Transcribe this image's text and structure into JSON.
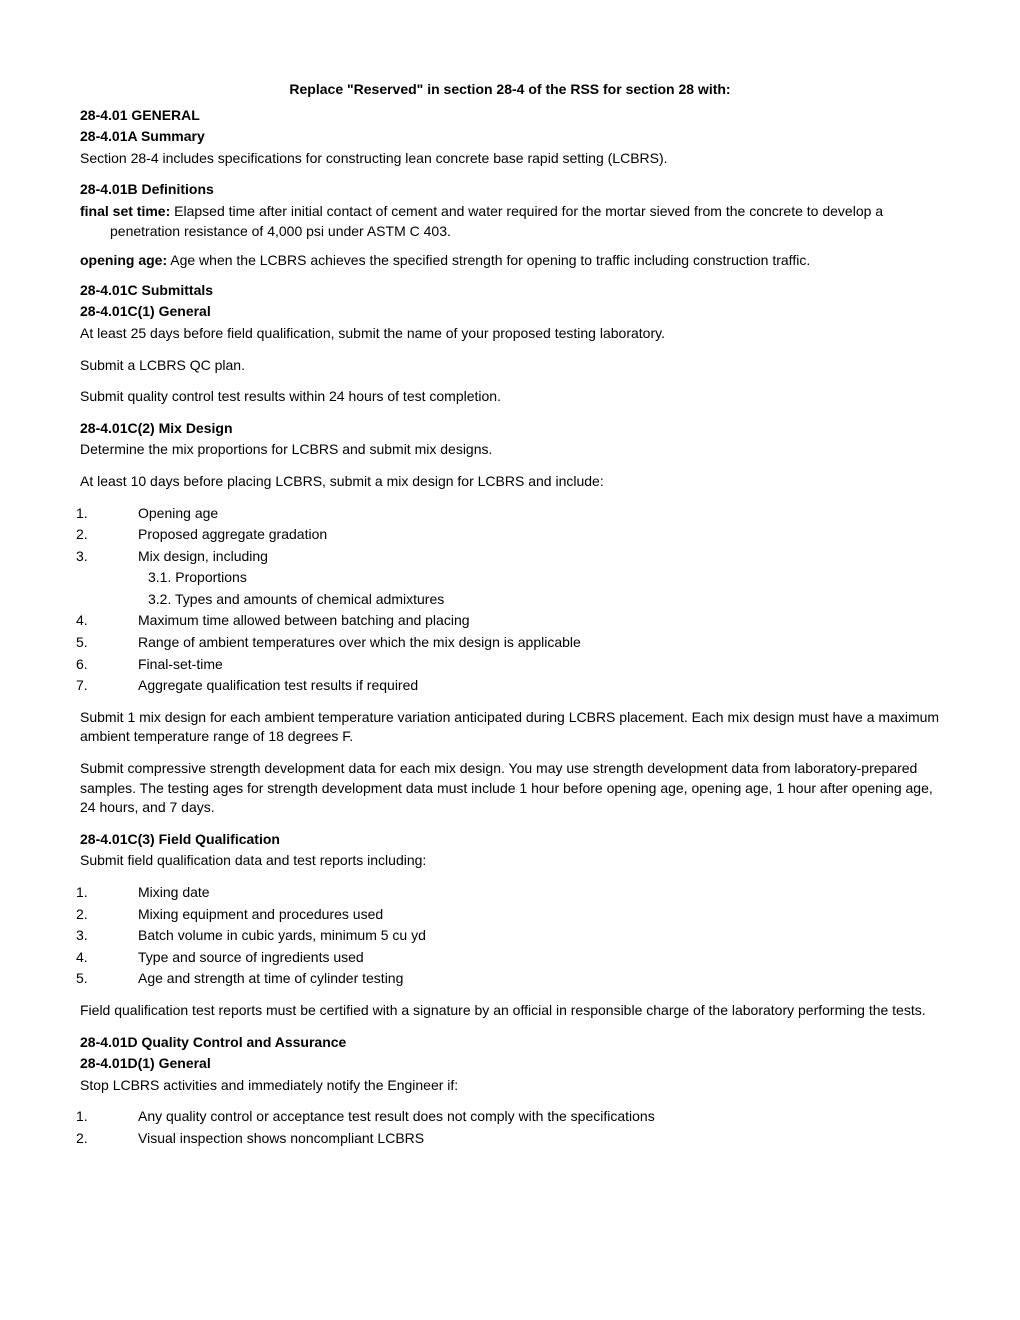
{
  "title": "Replace \"Reserved\" in section 28-4 of the RSS for section 28 with:",
  "s1": {
    "h": "28-4.01  GENERAL",
    "a": {
      "h": "28-4.01A  Summary",
      "p1": "Section 28-4 includes specifications for constructing lean concrete base rapid setting (LCBRS)."
    },
    "b": {
      "h": "28-4.01B  Definitions",
      "d1_term": "final set time:",
      "d1_body": " Elapsed time after initial contact of cement and water required for the mortar sieved from the concrete to develop a penetration resistance of 4,000 psi under ASTM C 403.",
      "d2_term": "opening age:",
      "d2_body": " Age when the LCBRS achieves the specified strength for opening to traffic including construction traffic."
    },
    "c": {
      "h": "28-4.01C  Submittals",
      "c1": {
        "h": "28-4.01C(1)  General",
        "p1": "At least 25 days before field qualification, submit the name of your proposed testing laboratory.",
        "p2": "Submit a LCBRS QC plan.",
        "p3": "Submit quality control test results within 24 hours of test completion."
      },
      "c2": {
        "h": "28-4.01C(2)  Mix Design",
        "p1": "Determine the mix proportions for LCBRS and submit mix designs.",
        "p2": "At least 10 days before placing LCBRS, submit a mix design for LCBRS and include:",
        "l1": "Opening age",
        "l2": "Proposed aggregate gradation",
        "l3": "Mix design, including",
        "l3_1": "Proportions",
        "l3_2": "Types and amounts of chemical admixtures",
        "l4": "Maximum time allowed between batching and placing",
        "l5": "Range of ambient temperatures over which the mix design is applicable",
        "l6": "Final-set-time",
        "l7": "Aggregate qualification test results if required",
        "p3": "Submit 1 mix design for each ambient temperature variation anticipated during LCBRS placement. Each mix design must have a maximum ambient temperature range of 18 degrees F.",
        "p4": "Submit compressive strength development data for each mix design. You may use strength development data from laboratory-prepared samples. The testing ages for strength development data must include 1 hour before opening age, opening age, 1 hour after opening age, 24 hours, and 7 days."
      },
      "c3": {
        "h": "28-4.01C(3)  Field Qualification",
        "p1": "Submit field qualification data and test reports including:",
        "l1": "Mixing date",
        "l2": "Mixing equipment and procedures used",
        "l3": "Batch volume in cubic yards, minimum 5 cu yd",
        "l4": "Type and source of ingredients used",
        "l5": "Age and strength at time of cylinder testing",
        "p2": "Field qualification test reports must be certified with a signature by an official in responsible charge of the laboratory performing the tests."
      }
    },
    "d": {
      "h": "28-4.01D  Quality Control and Assurance",
      "d1": {
        "h": "28-4.01D(1)  General",
        "p1": "Stop LCBRS activities and immediately notify the Engineer if:",
        "l1": "Any quality control or acceptance test result does not comply with the specifications",
        "l2": "Visual inspection shows noncompliant LCBRS"
      }
    }
  }
}
